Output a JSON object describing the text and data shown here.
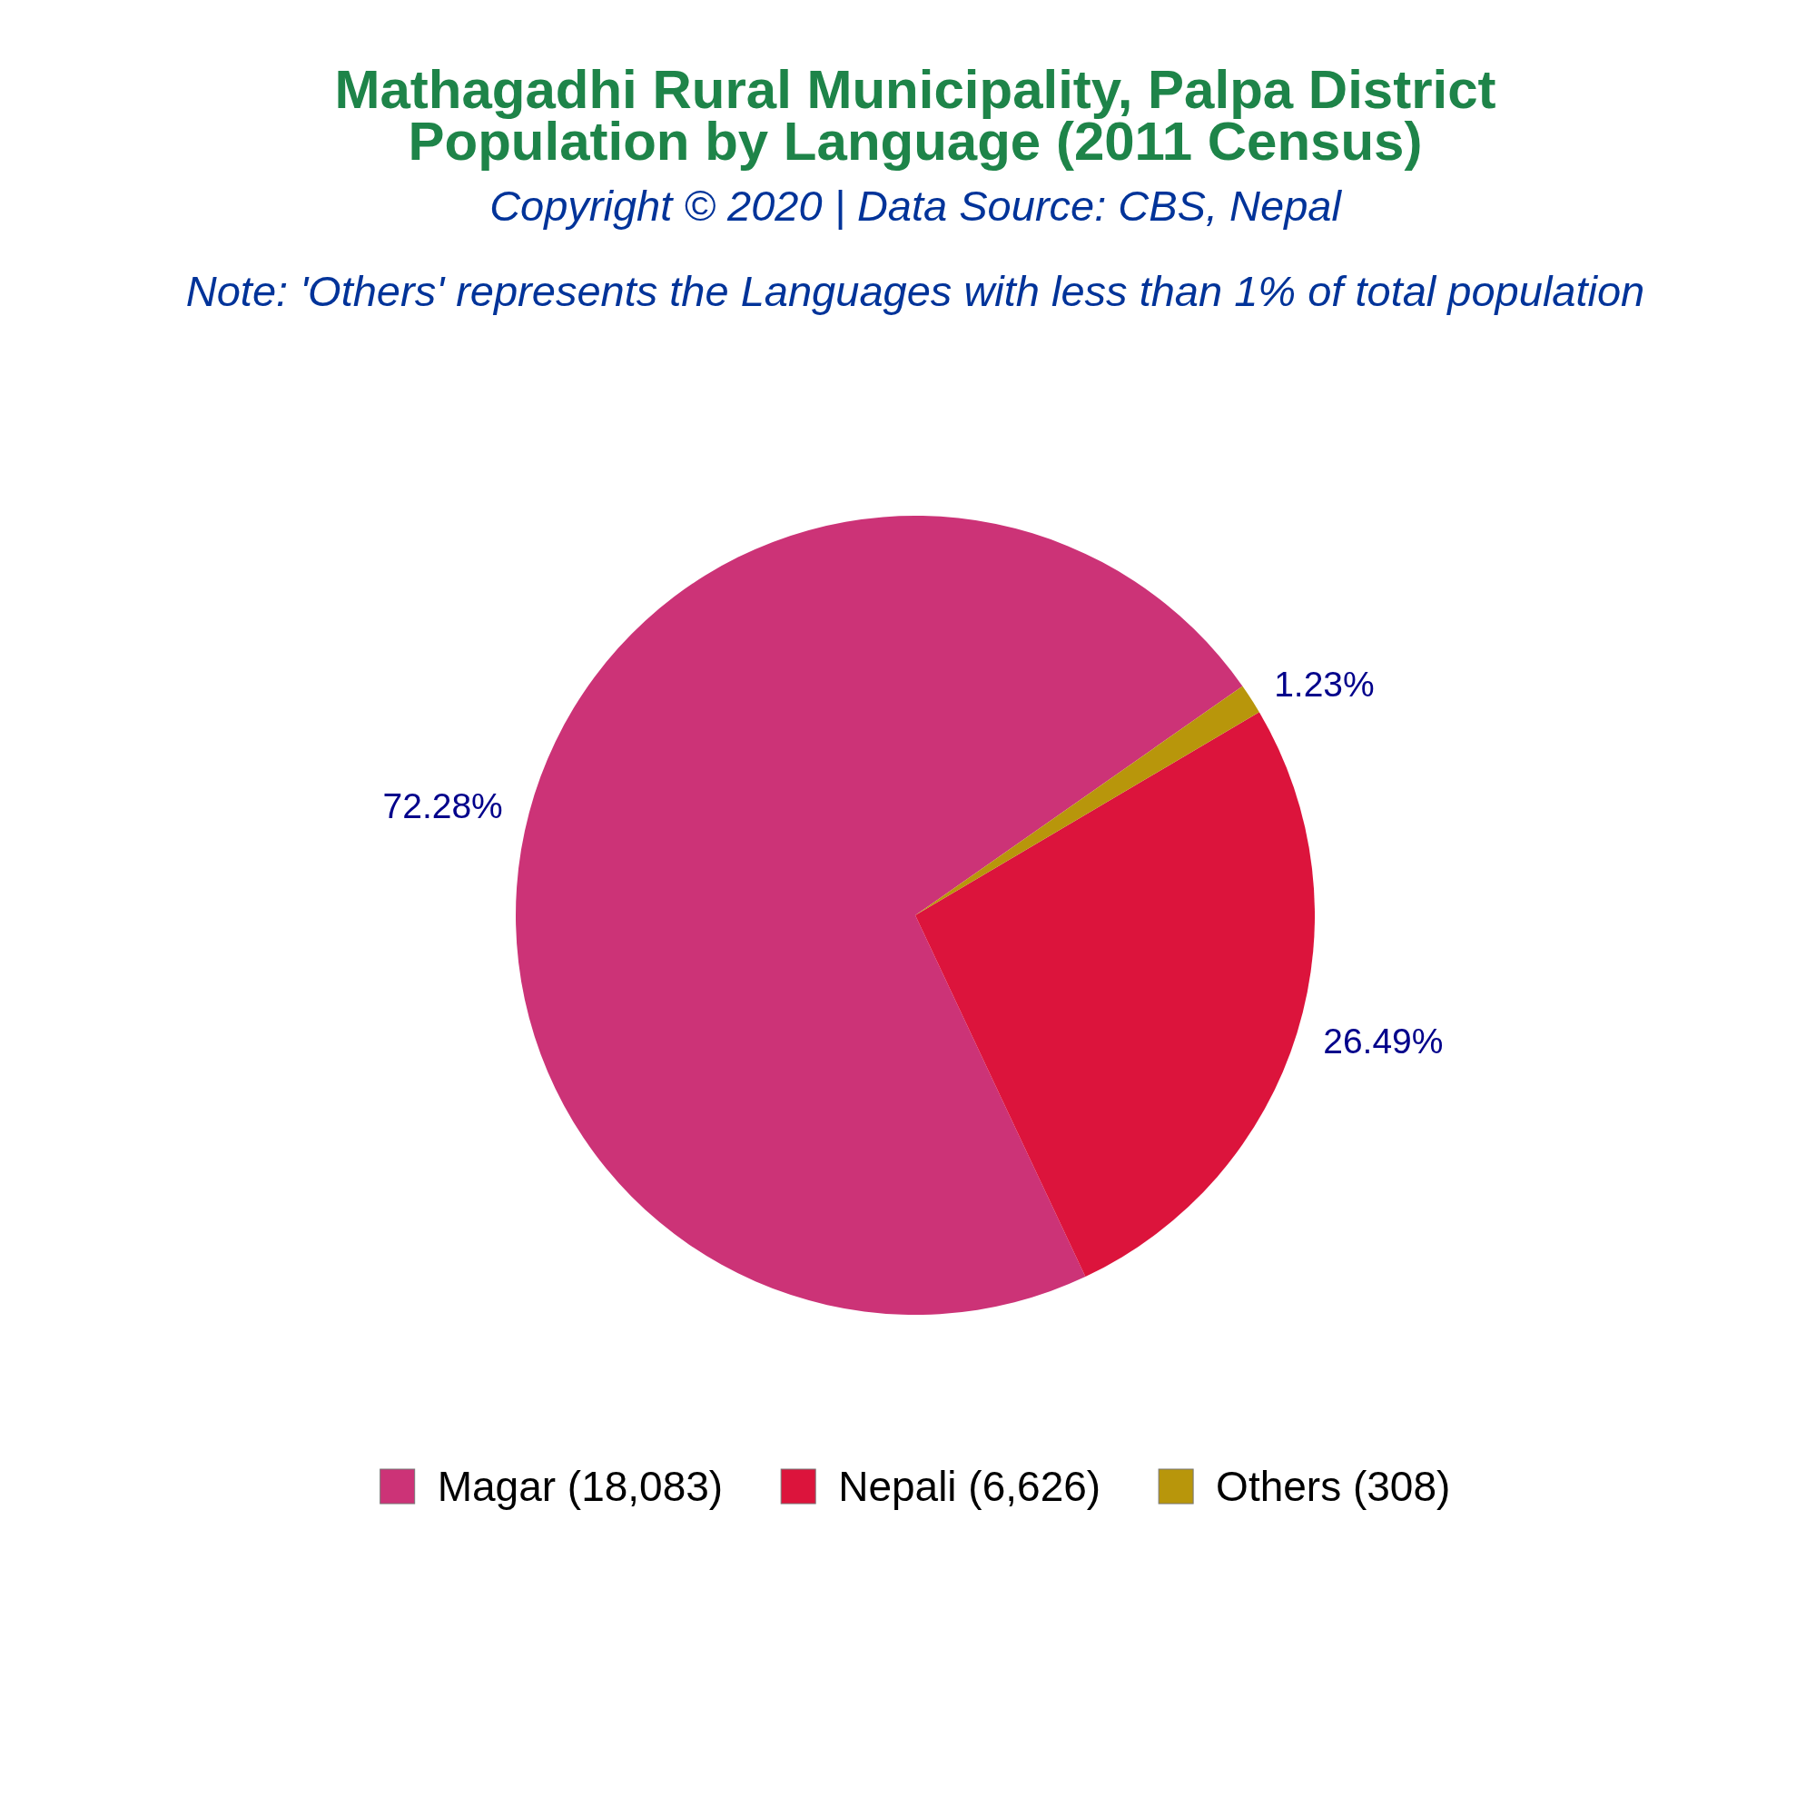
{
  "chart_data": {
    "type": "pie",
    "title": "Mathagadhi Rural Municipality, Palpa District\nPopulation by Language (2011 Census)",
    "subtitle": "Copyright © 2020 | Data Source: CBS, Nepal",
    "annotations": [
      "Note: 'Others' represents the Languages with less than 1% of total population"
    ],
    "categories": [
      "Magar (18,083)",
      "Nepali (6,626)",
      "Others (308)"
    ],
    "values": [
      72.28,
      26.49,
      1.23
    ],
    "colors": [
      "#cc3377",
      "#dc143c",
      "#b8960b"
    ],
    "value_labels": [
      "72.28%",
      "26.49%",
      "1.23%"
    ],
    "legend": "bottom"
  }
}
